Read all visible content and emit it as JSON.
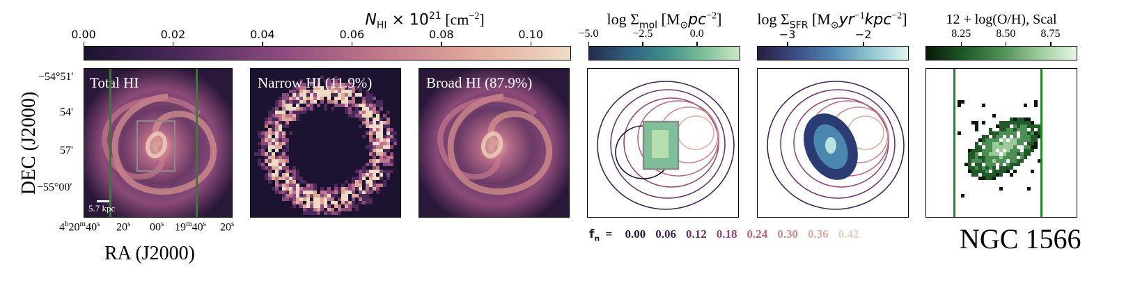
{
  "colorbars": {
    "hi": {
      "title_main": "N",
      "title_sub": "HI",
      "title_rest": " × 10",
      "title_sup": "21",
      "title_unit": " [cm",
      "title_unit_sup": "−2",
      "title_close": "]",
      "ticks": [
        "0.00",
        "0.02",
        "0.04",
        "0.06",
        "0.08",
        "0.10"
      ],
      "tick_values": [
        0.0,
        0.02,
        0.04,
        0.06,
        0.08,
        0.1
      ],
      "range": [
        0.0,
        0.109
      ],
      "colors": [
        "#1c1330",
        "#4a2a5a",
        "#8a4a7c",
        "#c0768a",
        "#e0a99a",
        "#efdcc4"
      ]
    },
    "mol": {
      "title": "log Σ",
      "title_sub": "mol",
      "title_unit": " [M",
      "title_unit_sub": "⊙",
      "title_unit_rest": "pc",
      "title_unit_sup": "−2",
      "title_close": "]",
      "ticks": [
        "−5.0",
        "−2.5",
        "0.0"
      ],
      "tick_values": [
        -5.0,
        -2.5,
        0.0
      ],
      "range": [
        -5.0,
        2.0
      ],
      "colors": [
        "#252b4c",
        "#2f5f7c",
        "#3d8e8a",
        "#79bd98",
        "#cde8c4"
      ]
    },
    "sfr": {
      "title": "log Σ",
      "title_sub": "SFR",
      "title_unit": " [M",
      "title_unit_sub": "⊙",
      "title_unit_rest": "yr",
      "title_unit_sup": "−1",
      "title_unit_rest2": "kpc",
      "title_unit_sup2": "−2",
      "title_close": "]",
      "ticks": [
        "−3",
        "−2"
      ],
      "tick_values": [
        -3,
        -2
      ],
      "range": [
        -3.4,
        -1.4
      ],
      "colors": [
        "#2a1e3e",
        "#3c4c84",
        "#4d87b0",
        "#8fc6d0",
        "#dff4f0"
      ]
    },
    "oh": {
      "title": "12 + log(O/H), Scal",
      "ticks": [
        "8.25",
        "8.50",
        "8.75"
      ],
      "tick_values": [
        8.25,
        8.5,
        8.75
      ],
      "range": [
        8.05,
        8.9
      ],
      "colors": [
        "#061a06",
        "#1f5a28",
        "#4c8f54",
        "#9ccb9a",
        "#e8f6e4"
      ]
    }
  },
  "panels": {
    "total_hi": {
      "label": "Total HI",
      "scalebar": "5.7 kpc"
    },
    "narrow_hi": {
      "label": "Narrow HI (11.9%)"
    },
    "broad_hi": {
      "label": "Broad HI (87.9%)"
    }
  },
  "axes": {
    "dec_label": "DEC (J2000)",
    "ra_label": "RA (J2000)",
    "dec_ticks": [
      "−54°51'",
      "54'",
      "57'",
      "−55°00'"
    ],
    "ra_ticks": [
      {
        "main": "4",
        "sup1": "h",
        "mid": "20",
        "sup2": "m",
        "end": "40",
        "sup3": "s"
      },
      {
        "main": "20",
        "sup1": "s"
      },
      {
        "main": "00",
        "sup1": "s"
      },
      {
        "main": "19",
        "sup1": "m",
        "mid": "40",
        "sup2": "s"
      },
      {
        "main": "20",
        "sup1": "s"
      }
    ]
  },
  "fn_legend": {
    "label": "f",
    "label_sub": "n",
    "eq": "=",
    "values": [
      "0.00",
      "0.06",
      "0.12",
      "0.18",
      "0.24",
      "0.30",
      "0.36",
      "0.42"
    ],
    "colors": [
      "#221636",
      "#3f2558",
      "#6a3470",
      "#934877",
      "#b9657e",
      "#cf8a8c",
      "#dcae9c",
      "#e6cfb6"
    ]
  },
  "galaxy_name": "NGC 1566",
  "colors": {
    "vertical_lines": "#1e8c1e",
    "box": "#8a8a8a",
    "panel_bg": "#1c1330"
  }
}
